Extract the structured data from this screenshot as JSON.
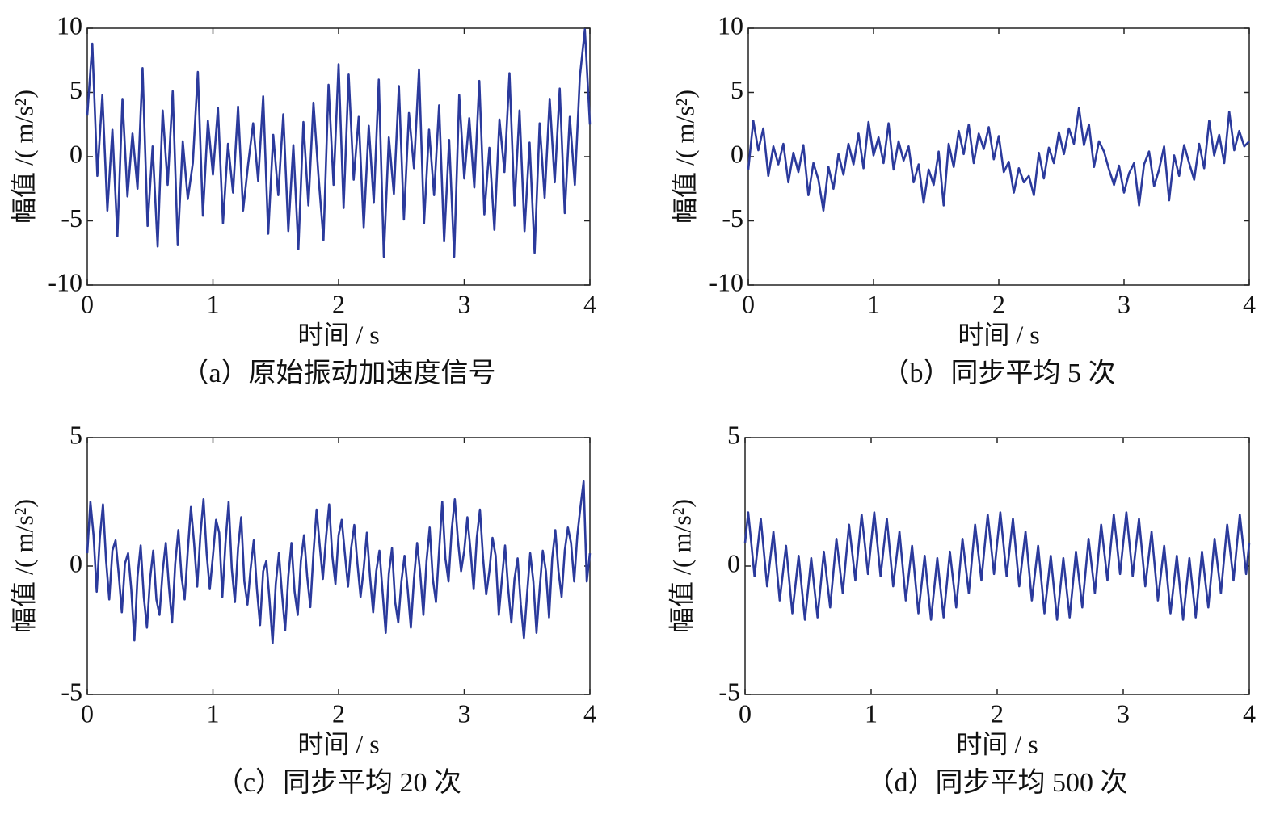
{
  "chart_data": [
    {
      "type": "line",
      "title": "（a）原始振动加速度信号",
      "xlabel": "时间 / s",
      "ylabel": "幅值 /( m/s²)",
      "color": "#2b3a9c",
      "xlim": [
        0,
        4
      ],
      "xticks": [
        0,
        1,
        2,
        3,
        4
      ],
      "ylim": [
        -10,
        10
      ],
      "yticks": [
        -10,
        -5,
        0,
        5,
        10
      ],
      "x": [
        0,
        0.04,
        0.08,
        0.12,
        0.16,
        0.2,
        0.24,
        0.28,
        0.32,
        0.36,
        0.4,
        0.44,
        0.48,
        0.52,
        0.56,
        0.6,
        0.64,
        0.68,
        0.72,
        0.76,
        0.8,
        0.84,
        0.88,
        0.92,
        0.96,
        1,
        1.04,
        1.08,
        1.12,
        1.16,
        1.2,
        1.24,
        1.28,
        1.32,
        1.36,
        1.4,
        1.44,
        1.48,
        1.52,
        1.56,
        1.6,
        1.64,
        1.68,
        1.72,
        1.76,
        1.8,
        1.84,
        1.88,
        1.92,
        1.96,
        2,
        2.04,
        2.08,
        2.12,
        2.16,
        2.2,
        2.24,
        2.28,
        2.32,
        2.36,
        2.4,
        2.44,
        2.48,
        2.52,
        2.56,
        2.6,
        2.64,
        2.68,
        2.72,
        2.76,
        2.8,
        2.84,
        2.88,
        2.92,
        2.96,
        3,
        3.04,
        3.08,
        3.12,
        3.16,
        3.2,
        3.24,
        3.28,
        3.32,
        3.36,
        3.4,
        3.44,
        3.48,
        3.52,
        3.56,
        3.6,
        3.64,
        3.68,
        3.72,
        3.76,
        3.8,
        3.84,
        3.88,
        3.92,
        3.96,
        4
      ],
      "values": [
        3.2,
        8.8,
        -1.5,
        4.8,
        -4.2,
        2.1,
        -6.2,
        4.5,
        -3.1,
        1.8,
        -2.5,
        6.9,
        -5.4,
        0.8,
        -7.0,
        3.6,
        -2.2,
        5.1,
        -6.9,
        1.2,
        -3.3,
        -0.5,
        6.6,
        -4.6,
        2.8,
        -1.4,
        3.8,
        -5.2,
        1.0,
        -2.8,
        3.9,
        -4.2,
        -0.6,
        2.6,
        -1.9,
        4.7,
        -6.0,
        1.7,
        -3.0,
        3.3,
        -5.8,
        0.9,
        -7.2,
        2.7,
        -3.8,
        4.2,
        -1.5,
        -6.5,
        5.6,
        -2.2,
        7.2,
        -4.0,
        6.4,
        -1.8,
        3.1,
        -5.5,
        2.4,
        -3.6,
        6.0,
        -7.8,
        1.5,
        -2.9,
        5.5,
        -4.9,
        3.4,
        -0.9,
        6.8,
        -5.2,
        2.1,
        -3.0,
        4.0,
        -6.6,
        1.3,
        -7.8,
        4.8,
        -1.7,
        3.0,
        -2.4,
        5.9,
        -4.5,
        0.7,
        -5.7,
        2.9,
        -1.2,
        6.5,
        -3.8,
        3.6,
        -5.8,
        1.1,
        -7.5,
        2.6,
        -3.2,
        4.5,
        -2.0,
        5.3,
        -4.4,
        3.1,
        -2.2,
        6.2,
        9.9,
        2.5
      ]
    },
    {
      "type": "line",
      "title": "（b）同步平均 5 次",
      "xlabel": "时间 / s",
      "ylabel": "幅值 /( m/s²)",
      "color": "#2b3a9c",
      "xlim": [
        0,
        4
      ],
      "xticks": [
        0,
        1,
        2,
        3,
        4
      ],
      "ylim": [
        -10,
        10
      ],
      "yticks": [
        -10,
        -5,
        0,
        5,
        10
      ],
      "x": [
        0,
        0.04,
        0.08,
        0.12,
        0.16,
        0.2,
        0.24,
        0.28,
        0.32,
        0.36,
        0.4,
        0.44,
        0.48,
        0.52,
        0.56,
        0.6,
        0.64,
        0.68,
        0.72,
        0.76,
        0.8,
        0.84,
        0.88,
        0.92,
        0.96,
        1,
        1.04,
        1.08,
        1.12,
        1.16,
        1.2,
        1.24,
        1.28,
        1.32,
        1.36,
        1.4,
        1.44,
        1.48,
        1.52,
        1.56,
        1.6,
        1.64,
        1.68,
        1.72,
        1.76,
        1.8,
        1.84,
        1.88,
        1.92,
        1.96,
        2,
        2.04,
        2.08,
        2.12,
        2.16,
        2.2,
        2.24,
        2.28,
        2.32,
        2.36,
        2.4,
        2.44,
        2.48,
        2.52,
        2.56,
        2.6,
        2.64,
        2.68,
        2.72,
        2.76,
        2.8,
        2.84,
        2.88,
        2.92,
        2.96,
        3,
        3.04,
        3.08,
        3.12,
        3.16,
        3.2,
        3.24,
        3.28,
        3.32,
        3.36,
        3.4,
        3.44,
        3.48,
        3.52,
        3.56,
        3.6,
        3.64,
        3.68,
        3.72,
        3.76,
        3.8,
        3.84,
        3.88,
        3.92,
        3.96,
        4
      ],
      "values": [
        -1.0,
        2.8,
        0.5,
        2.2,
        -1.5,
        0.8,
        -0.6,
        1.0,
        -2.0,
        0.3,
        -1.2,
        0.9,
        -3.0,
        -0.5,
        -1.8,
        -4.2,
        -0.8,
        -2.5,
        0.2,
        -1.4,
        1.0,
        -0.6,
        1.8,
        -0.9,
        2.7,
        0.1,
        1.5,
        -0.5,
        2.6,
        -1.0,
        1.2,
        -0.3,
        0.8,
        -2.0,
        -0.6,
        -3.6,
        -1.0,
        -2.2,
        0.4,
        -3.8,
        1.0,
        -0.8,
        2.0,
        0.2,
        2.5,
        -0.5,
        1.8,
        0.6,
        2.3,
        -0.2,
        1.6,
        -1.2,
        -0.4,
        -2.8,
        -0.9,
        -2.0,
        -1.5,
        -3.0,
        0.3,
        -1.7,
        0.7,
        -0.5,
        1.9,
        0.2,
        2.2,
        1.0,
        3.8,
        0.9,
        2.5,
        -0.8,
        1.2,
        0.4,
        -1.0,
        -2.2,
        -0.7,
        -2.8,
        -1.3,
        -0.5,
        -3.8,
        -0.6,
        0.4,
        -2.3,
        -1.0,
        0.8,
        -3.4,
        0.1,
        -1.5,
        0.9,
        -0.5,
        -1.8,
        1.0,
        -0.9,
        2.8,
        0.1,
        1.7,
        -0.5,
        3.5,
        0.5,
        2.0,
        0.8,
        1.2
      ]
    },
    {
      "type": "line",
      "title": "（c）同步平均 20 次",
      "xlabel": "时间 / s",
      "ylabel": "幅值 /( m/s²)",
      "color": "#2b3a9c",
      "xlim": [
        0,
        4
      ],
      "xticks": [
        0,
        1,
        2,
        3,
        4
      ],
      "ylim": [
        -5,
        5
      ],
      "yticks": [
        -5,
        0,
        5
      ],
      "x": [
        0,
        0.025,
        0.05,
        0.075,
        0.1,
        0.125,
        0.15,
        0.175,
        0.2,
        0.225,
        0.25,
        0.275,
        0.3,
        0.325,
        0.35,
        0.375,
        0.4,
        0.425,
        0.45,
        0.475,
        0.5,
        0.525,
        0.55,
        0.575,
        0.6,
        0.625,
        0.65,
        0.675,
        0.7,
        0.725,
        0.75,
        0.775,
        0.8,
        0.825,
        0.85,
        0.875,
        0.9,
        0.925,
        0.95,
        0.975,
        1,
        1.025,
        1.05,
        1.075,
        1.1,
        1.125,
        1.15,
        1.175,
        1.2,
        1.225,
        1.25,
        1.275,
        1.3,
        1.325,
        1.35,
        1.375,
        1.4,
        1.425,
        1.45,
        1.475,
        1.5,
        1.525,
        1.55,
        1.575,
        1.6,
        1.625,
        1.65,
        1.675,
        1.7,
        1.725,
        1.75,
        1.775,
        1.8,
        1.825,
        1.85,
        1.875,
        1.9,
        1.925,
        1.95,
        1.975,
        2,
        2.025,
        2.05,
        2.075,
        2.1,
        2.125,
        2.15,
        2.175,
        2.2,
        2.225,
        2.25,
        2.275,
        2.3,
        2.325,
        2.35,
        2.375,
        2.4,
        2.425,
        2.45,
        2.475,
        2.5,
        2.525,
        2.55,
        2.575,
        2.6,
        2.625,
        2.65,
        2.675,
        2.7,
        2.725,
        2.75,
        2.775,
        2.8,
        2.825,
        2.85,
        2.875,
        2.9,
        2.925,
        2.95,
        2.975,
        3,
        3.025,
        3.05,
        3.075,
        3.1,
        3.125,
        3.15,
        3.175,
        3.2,
        3.225,
        3.25,
        3.275,
        3.3,
        3.325,
        3.35,
        3.375,
        3.4,
        3.425,
        3.45,
        3.475,
        3.5,
        3.525,
        3.55,
        3.575,
        3.6,
        3.625,
        3.65,
        3.675,
        3.7,
        3.725,
        3.75,
        3.775,
        3.8,
        3.825,
        3.85,
        3.875,
        3.9,
        3.925,
        3.95,
        3.975,
        4
      ],
      "values": [
        0.5,
        2.5,
        1.2,
        -1.0,
        1.1,
        2.4,
        0.2,
        -1.3,
        0.6,
        1.0,
        -0.3,
        -1.8,
        0.1,
        0.5,
        -0.9,
        -2.9,
        -0.4,
        0.8,
        -1.2,
        -2.4,
        -0.5,
        0.6,
        -1.3,
        -1.9,
        -0.2,
        0.9,
        -0.8,
        -2.2,
        0.1,
        1.4,
        -0.4,
        -1.3,
        0.6,
        2.3,
        0.9,
        -0.8,
        1.2,
        2.6,
        0.5,
        -0.9,
        0.4,
        1.8,
        1.3,
        -1.2,
        0.9,
        2.5,
        -0.1,
        -1.4,
        0.7,
        1.9,
        -0.6,
        -1.5,
        -0.1,
        1.0,
        -0.9,
        -2.3,
        -0.2,
        0.2,
        -1.3,
        -3.0,
        -0.7,
        0.5,
        -1.1,
        -2.5,
        -0.4,
        0.9,
        -1.0,
        -1.9,
        0.2,
        1.2,
        -0.4,
        -1.6,
        0.5,
        2.2,
        0.8,
        -0.5,
        1.1,
        2.4,
        0.4,
        -0.7,
        1.2,
        1.8,
        0.5,
        -0.8,
        0.7,
        1.6,
        0.1,
        -1.2,
        -0.1,
        1.3,
        -0.4,
        -1.8,
        -0.2,
        0.6,
        -1.0,
        -2.6,
        -0.3,
        0.7,
        -1.4,
        -2.2,
        -0.6,
        0.4,
        -0.9,
        -2.4,
        -0.5,
        0.9,
        -0.3,
        -1.9,
        0.2,
        1.5,
        -0.5,
        -1.4,
        0.6,
        2.5,
        0.3,
        -0.6,
        1.4,
        2.6,
        1.0,
        -0.2,
        0.6,
        1.9,
        0.6,
        -0.9,
        1.1,
        2.2,
        0.3,
        -1.1,
        -0.2,
        1.1,
        0.4,
        -1.9,
        -0.5,
        0.8,
        -0.9,
        -2.2,
        -0.5,
        0.3,
        -1.5,
        -2.8,
        -1.1,
        0.5,
        -0.6,
        -2.6,
        -0.9,
        0.6,
        -0.2,
        -2.0,
        0.3,
        1.4,
        -0.2,
        -1.2,
        0.6,
        1.5,
        0.9,
        -0.6,
        1.2,
        2.3,
        3.3,
        -0.6,
        0.5
      ]
    },
    {
      "type": "line",
      "title": "（d）同步平均 500 次",
      "xlabel": "时间 / s",
      "ylabel": "幅值 /( m/s²)",
      "color": "#2b3a9c",
      "xlim": [
        0,
        4
      ],
      "xticks": [
        0,
        1,
        2,
        3,
        4
      ],
      "ylim": [
        -5,
        5
      ],
      "yticks": [
        -5,
        0,
        5
      ],
      "x": [
        0,
        0.025,
        0.05,
        0.075,
        0.1,
        0.125,
        0.15,
        0.175,
        0.2,
        0.225,
        0.25,
        0.275,
        0.3,
        0.325,
        0.35,
        0.375,
        0.4,
        0.425,
        0.45,
        0.475,
        0.5,
        0.525,
        0.55,
        0.575,
        0.6,
        0.625,
        0.65,
        0.675,
        0.7,
        0.725,
        0.75,
        0.775,
        0.8,
        0.825,
        0.85,
        0.875,
        0.9,
        0.925,
        0.95,
        0.975,
        1,
        1.025,
        1.05,
        1.075,
        1.1,
        1.125,
        1.15,
        1.175,
        1.2,
        1.225,
        1.25,
        1.275,
        1.3,
        1.325,
        1.35,
        1.375,
        1.4,
        1.425,
        1.45,
        1.475,
        1.5,
        1.525,
        1.55,
        1.575,
        1.6,
        1.625,
        1.65,
        1.675,
        1.7,
        1.725,
        1.75,
        1.775,
        1.8,
        1.825,
        1.85,
        1.875,
        1.9,
        1.925,
        1.95,
        1.975,
        2,
        2.025,
        2.05,
        2.075,
        2.1,
        2.125,
        2.15,
        2.175,
        2.2,
        2.225,
        2.25,
        2.275,
        2.3,
        2.325,
        2.35,
        2.375,
        2.4,
        2.425,
        2.45,
        2.475,
        2.5,
        2.525,
        2.55,
        2.575,
        2.6,
        2.625,
        2.65,
        2.675,
        2.7,
        2.725,
        2.75,
        2.775,
        2.8,
        2.825,
        2.85,
        2.875,
        2.9,
        2.925,
        2.95,
        2.975,
        3,
        3.025,
        3.05,
        3.075,
        3.1,
        3.125,
        3.15,
        3.175,
        3.2,
        3.225,
        3.25,
        3.275,
        3.3,
        3.325,
        3.35,
        3.375,
        3.4,
        3.425,
        3.45,
        3.475,
        3.5,
        3.525,
        3.55,
        3.575,
        3.6,
        3.625,
        3.65,
        3.675,
        3.7,
        3.725,
        3.75,
        3.775,
        3.8,
        3.825,
        3.85,
        3.875,
        3.9,
        3.925,
        3.95,
        3.975,
        4
      ],
      "values": [
        0.9,
        2.09,
        0.86,
        -0.4,
        0.73,
        1.84,
        0.53,
        -0.79,
        0.28,
        1.34,
        0,
        -1.34,
        -0.28,
        0.79,
        -0.53,
        -1.84,
        -0.73,
        0.4,
        -0.86,
        -2.09,
        -0.9,
        0.31,
        -0.86,
        -2.0,
        -0.73,
        0.56,
        -0.53,
        -1.61,
        -0.28,
        1.06,
        0,
        -1.06,
        0.28,
        1.61,
        0.53,
        -0.56,
        0.73,
        2.0,
        0.86,
        -0.31,
        0.9,
        2.09,
        0.86,
        -0.4,
        0.73,
        1.84,
        0.53,
        -0.79,
        0.28,
        1.34,
        0,
        -1.34,
        -0.28,
        0.79,
        -0.53,
        -1.84,
        -0.73,
        0.4,
        -0.86,
        -2.09,
        -0.9,
        0.31,
        -0.86,
        -2.0,
        -0.73,
        0.56,
        -0.53,
        -1.61,
        -0.28,
        1.06,
        0,
        -1.06,
        0.28,
        1.61,
        0.53,
        -0.56,
        0.73,
        2.0,
        0.86,
        -0.31,
        0.9,
        2.09,
        0.86,
        -0.4,
        0.73,
        1.84,
        0.53,
        -0.79,
        0.28,
        1.34,
        0,
        -1.34,
        -0.28,
        0.79,
        -0.53,
        -1.84,
        -0.73,
        0.4,
        -0.86,
        -2.09,
        -0.9,
        0.31,
        -0.86,
        -2.0,
        -0.73,
        0.56,
        -0.53,
        -1.61,
        -0.28,
        1.06,
        0,
        -1.06,
        0.28,
        1.61,
        0.53,
        -0.56,
        0.73,
        2.0,
        0.86,
        -0.31,
        0.9,
        2.09,
        0.86,
        -0.4,
        0.73,
        1.84,
        0.53,
        -0.79,
        0.28,
        1.34,
        0,
        -1.34,
        -0.28,
        0.79,
        -0.53,
        -1.84,
        -0.73,
        0.4,
        -0.86,
        -2.09,
        -0.9,
        0.31,
        -0.86,
        -2.0,
        -0.73,
        0.56,
        -0.53,
        -1.61,
        -0.28,
        1.06,
        0,
        -1.06,
        0.28,
        1.61,
        0.53,
        -0.56,
        0.73,
        2.0,
        0.86,
        -0.31,
        0.9
      ]
    }
  ]
}
